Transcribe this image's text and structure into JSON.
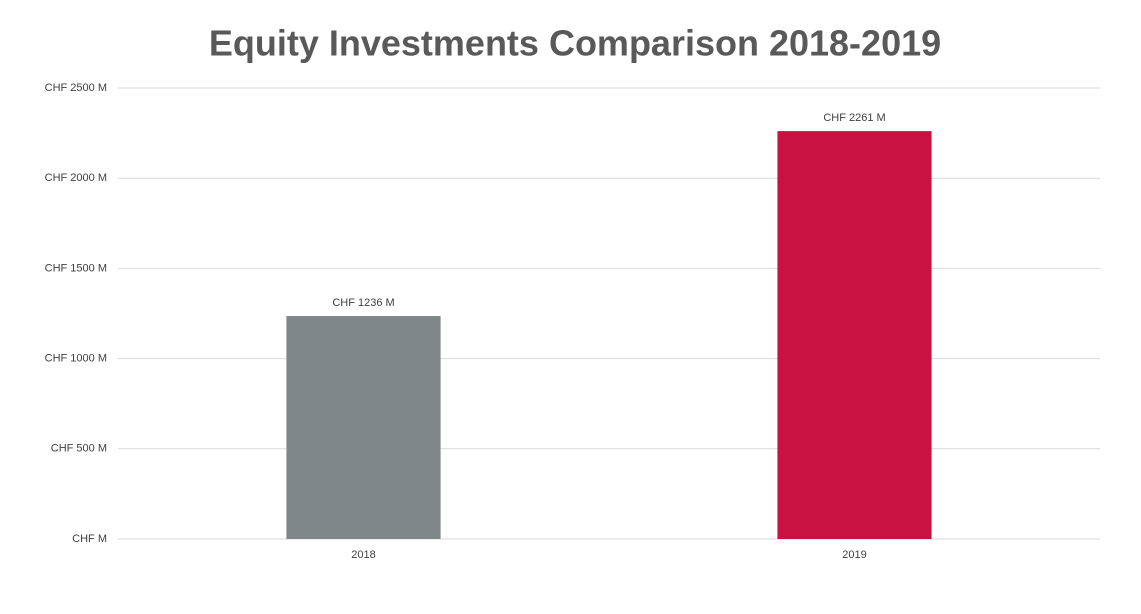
{
  "chart_data": {
    "type": "bar",
    "title": "Equity Investments Comparison 2018-2019",
    "categories": [
      "2018",
      "2019"
    ],
    "values": [
      1236,
      2261
    ],
    "value_labels": [
      "CHF 1236 M",
      "CHF 2261 M"
    ],
    "colors": [
      "#808788",
      "#c81242"
    ],
    "ylim": [
      0,
      2500
    ],
    "yticks": [
      {
        "value": 0,
        "label": "CHF  M"
      },
      {
        "value": 500,
        "label": "CHF 500 M"
      },
      {
        "value": 1000,
        "label": "CHF 1000 M"
      },
      {
        "value": 1500,
        "label": "CHF 1500 M"
      },
      {
        "value": 2000,
        "label": "CHF 2000 M"
      },
      {
        "value": 2500,
        "label": "CHF 2500 M"
      }
    ],
    "grid": true
  }
}
